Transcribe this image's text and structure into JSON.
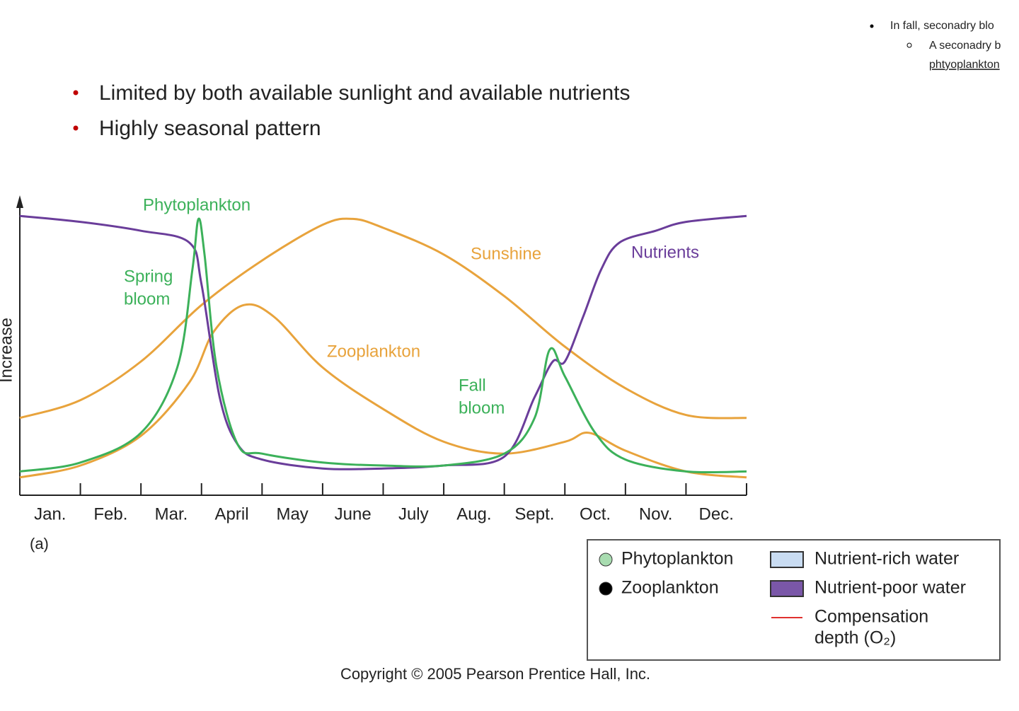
{
  "bullets": [
    "Limited by both available sunlight and available nutrients",
    "Highly seasonal pattern"
  ],
  "notes": [
    "In fall, seconadry blo",
    "A seconadry b",
    "phtyoplankton"
  ],
  "chart_data": {
    "type": "line",
    "y_label": "Increase",
    "panel_label": "(a)",
    "categories": [
      "Jan.",
      "Feb.",
      "Mar.",
      "April",
      "May",
      "June",
      "July",
      "Aug.",
      "Sept.",
      "Oct.",
      "Nov.",
      "Dec."
    ],
    "xlim": [
      0,
      12
    ],
    "ylim": [
      0,
      100
    ],
    "series": [
      {
        "name": "Sunshine",
        "color": "#e8a33c",
        "x": [
          0,
          1,
          2,
          3,
          4,
          5,
          5.5,
          6,
          7,
          8,
          9,
          10,
          11,
          12
        ],
        "values": [
          26,
          32,
          45,
          64,
          79,
          91,
          93,
          90,
          81,
          67,
          50,
          36,
          27,
          26
        ]
      },
      {
        "name": "Zooplankton",
        "color": "#e8a33c",
        "x": [
          0,
          1,
          2,
          2.8,
          3.2,
          3.7,
          4.2,
          5,
          6,
          7,
          8,
          9,
          9.4,
          10,
          11,
          12
        ],
        "values": [
          6,
          10,
          20,
          38,
          55,
          64,
          60,
          43,
          29,
          18,
          14,
          18,
          21,
          15,
          8,
          6
        ]
      },
      {
        "name": "Nutrients",
        "color": "#6a3d9a",
        "x": [
          0,
          1,
          2,
          2.8,
          3,
          3.3,
          3.6,
          4,
          5,
          6,
          7,
          8,
          8.5,
          8.8,
          9,
          9.3,
          9.6,
          9.9,
          10.5,
          11,
          12
        ],
        "values": [
          94,
          92,
          89,
          85,
          71,
          33,
          17,
          12,
          9,
          9,
          10,
          13,
          33,
          45,
          45,
          60,
          76,
          85,
          89,
          92,
          94
        ]
      },
      {
        "name": "Phytoplankton",
        "color": "#3cb15a",
        "x": [
          0,
          1,
          2,
          2.6,
          2.85,
          2.95,
          3.05,
          3.25,
          3.6,
          4,
          5,
          6,
          7,
          8,
          8.5,
          8.75,
          9,
          9.5,
          10,
          11,
          12
        ],
        "values": [
          8,
          11,
          21,
          43,
          76,
          93,
          81,
          43,
          17,
          14,
          11,
          10,
          10,
          14,
          26,
          49,
          40,
          21,
          12,
          8,
          8
        ]
      }
    ],
    "annotations": [
      "Spring",
      "bloom",
      "Fall",
      "bloom"
    ]
  },
  "legend_box": {
    "items": [
      {
        "label": "Phytoplankton",
        "marker": "circle",
        "color": "#a8dcb0"
      },
      {
        "label": "Zooplankton",
        "marker": "circle",
        "color": "#000000"
      },
      {
        "label": "Nutrient-rich water",
        "marker": "rect",
        "color": "#c9dcf2"
      },
      {
        "label": "Nutrient-poor water",
        "marker": "rect",
        "color": "#7a57a8"
      },
      {
        "label": "Compensation",
        "marker": "line",
        "color": "#e0312f"
      },
      {
        "label": "depth (O₂)",
        "marker": "none",
        "color": "#000000"
      }
    ]
  },
  "copyright": "Copyright © 2005 Pearson Prentice Hall, Inc."
}
